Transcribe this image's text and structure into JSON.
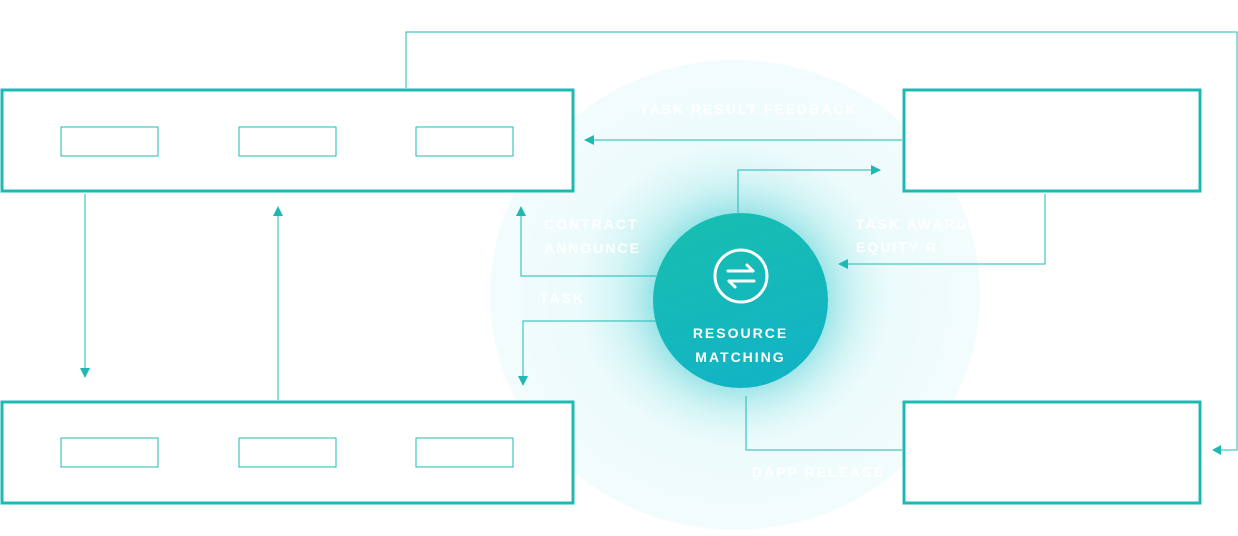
{
  "hub": {
    "title_line1": "RESOURCE",
    "title_line2": "MATCHING",
    "icon": "exchange-arrows-icon"
  },
  "edges": {
    "task_result_feedback": "TASK RESULT FEEDBACK",
    "contract": "CONTRACT",
    "announce": "ANNOUNCE",
    "task": "TASK",
    "task_award": "TASK AWARD",
    "equity": "EQUITY R",
    "dapp_release": "DAPP RELEASE"
  },
  "colors": {
    "accent": "#1fb8b4",
    "hub_gradient_start": "#18bfae",
    "hub_gradient_end": "#11b2c8",
    "label": "#ffffff"
  }
}
